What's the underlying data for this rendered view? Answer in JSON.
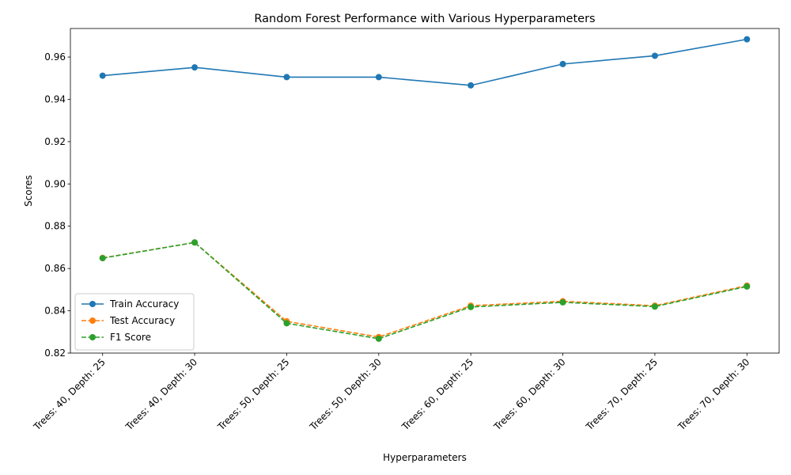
{
  "chart_data": {
    "type": "line",
    "title": "Random Forest Performance with Various Hyperparameters",
    "xlabel": "Hyperparameters",
    "ylabel": "Scores",
    "categories": [
      "Trees: 40, Depth: 25",
      "Trees: 40, Depth: 30",
      "Trees: 50, Depth: 25",
      "Trees: 50, Depth: 30",
      "Trees: 60, Depth: 25",
      "Trees: 60, Depth: 30",
      "Trees: 70, Depth: 25",
      "Trees: 70, Depth: 30"
    ],
    "ylim": [
      0.82,
      0.9735
    ],
    "yticks": [
      0.82,
      0.84,
      0.86,
      0.88,
      0.9,
      0.92,
      0.94,
      0.96
    ],
    "ytick_labels": [
      "0.82",
      "0.84",
      "0.86",
      "0.88",
      "0.90",
      "0.92",
      "0.94",
      "0.96"
    ],
    "grid": false,
    "legend_position": "lower-left",
    "series": [
      {
        "name": "Train Accuracy",
        "color": "#1f77b4",
        "style": "solid",
        "values": [
          0.9512,
          0.9551,
          0.9505,
          0.9505,
          0.9466,
          0.9567,
          0.9606,
          0.9684
        ]
      },
      {
        "name": "Test Accuracy",
        "color": "#ff7f0e",
        "style": "dashed",
        "values": [
          0.865,
          0.8723,
          0.835,
          0.8276,
          0.8424,
          0.8445,
          0.8424,
          0.8519
        ]
      },
      {
        "name": "F1 Score",
        "color": "#2ca02c",
        "style": "dashed",
        "values": [
          0.8649,
          0.8723,
          0.8341,
          0.8268,
          0.8418,
          0.844,
          0.842,
          0.8515
        ]
      }
    ]
  }
}
